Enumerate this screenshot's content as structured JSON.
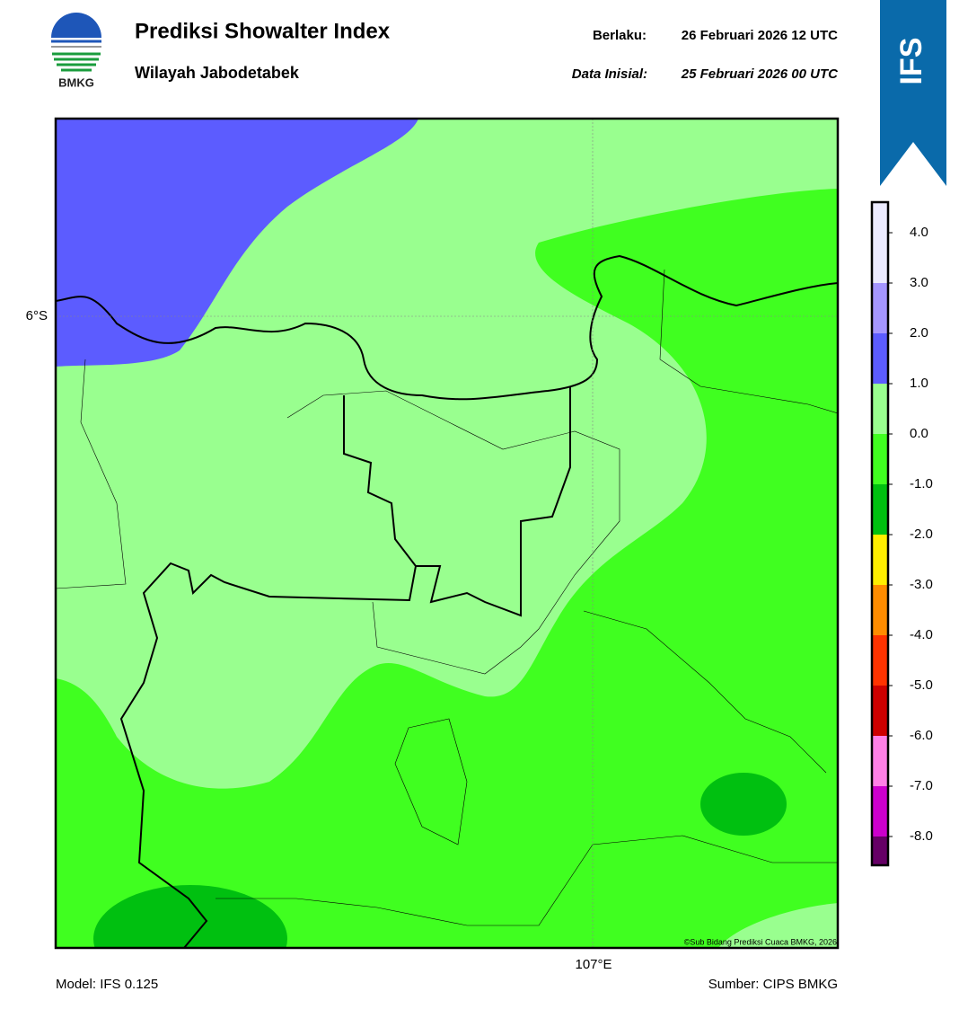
{
  "header": {
    "title": "Prediksi Showalter Index",
    "subtitle": "Wilayah Jabodetabek",
    "valid_label": "Berlaku:",
    "valid_time": "26 Februari 2026 12 UTC",
    "init_label": "Data Inisial:",
    "init_time": "25 Februari 2026 00 UTC",
    "logo_text": "BMKG",
    "banner": "IFS"
  },
  "map": {
    "lat_label": "6°S",
    "lon_label": "107°E",
    "credit": "©Sub Bidang Prediksi Cuaca BMKG, 2026"
  },
  "colorbar": {
    "labels": [
      "4.0",
      "3.0",
      "2.0",
      "1.0",
      "0.0",
      "-1.0",
      "-2.0",
      "-3.0",
      "-4.0",
      "-5.0",
      "-6.0",
      "-7.0",
      "-8.0"
    ],
    "colors": [
      "#ecebff",
      "#a596ff",
      "#5c5cff",
      "#99ff8f",
      "#40ff20",
      "#00c010",
      "#ffee00",
      "#ff8c00",
      "#ff3300",
      "#cc0000",
      "#ff80e6",
      "#cc00cc",
      "#660066"
    ]
  },
  "footer": {
    "model": "Model: IFS 0.125",
    "source": "Sumber: CIPS BMKG"
  }
}
